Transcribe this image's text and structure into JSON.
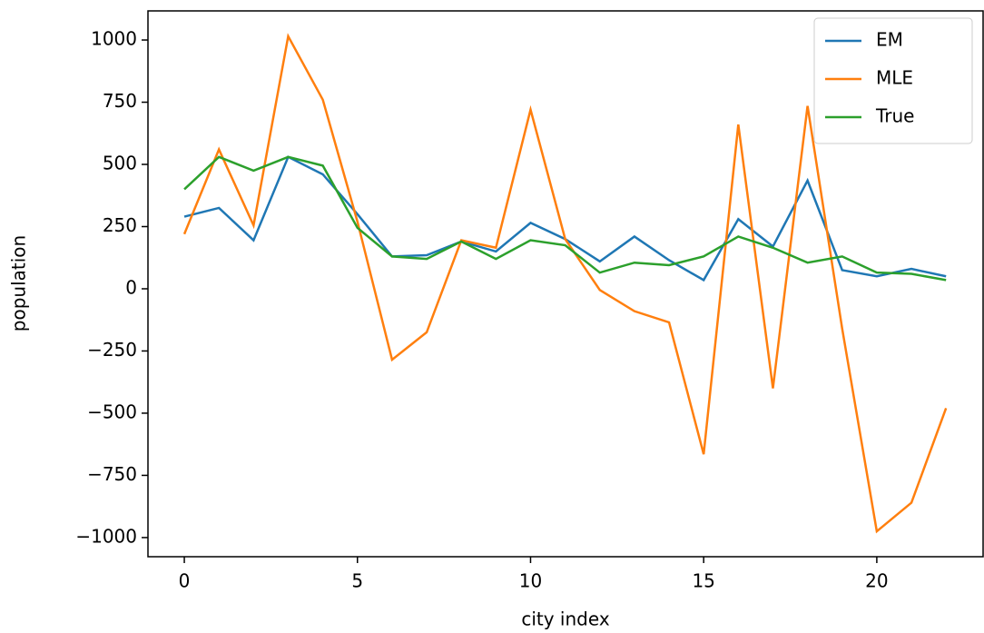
{
  "chart_data": {
    "type": "line",
    "xlabel": "city index",
    "ylabel": "population",
    "x": [
      0,
      1,
      2,
      3,
      4,
      5,
      6,
      7,
      8,
      9,
      10,
      11,
      12,
      13,
      14,
      15,
      16,
      17,
      18,
      19,
      20,
      21,
      22
    ],
    "series": [
      {
        "name": "EM",
        "color": "#1f77b4",
        "values": [
          290,
          325,
          195,
          530,
          460,
          300,
          130,
          135,
          190,
          150,
          265,
          200,
          110,
          210,
          115,
          35,
          280,
          170,
          435,
          75,
          50,
          80,
          50
        ]
      },
      {
        "name": "MLE",
        "color": "#ff7f0e",
        "values": [
          220,
          560,
          255,
          1015,
          760,
          270,
          -285,
          -175,
          195,
          165,
          720,
          200,
          -5,
          -90,
          -135,
          -665,
          660,
          -400,
          735,
          -160,
          -975,
          -860,
          -480
        ]
      },
      {
        "name": "True",
        "color": "#2ca02c",
        "values": [
          400,
          530,
          475,
          530,
          495,
          245,
          130,
          120,
          190,
          120,
          195,
          175,
          65,
          105,
          95,
          130,
          210,
          165,
          105,
          130,
          65,
          60,
          35
        ]
      }
    ],
    "xlim": [
      -1.05,
      23.07
    ],
    "xticks": [
      0,
      5,
      10,
      15,
      20
    ],
    "ylim": [
      -1077,
      1117
    ],
    "yticks": [
      {
        "value": -1000,
        "label": "−1000"
      },
      {
        "value": -750,
        "label": "−750"
      },
      {
        "value": -500,
        "label": "−500"
      },
      {
        "value": -250,
        "label": "−250"
      },
      0,
      250,
      500,
      750,
      1000
    ],
    "legend": "upper right",
    "grid": false
  }
}
